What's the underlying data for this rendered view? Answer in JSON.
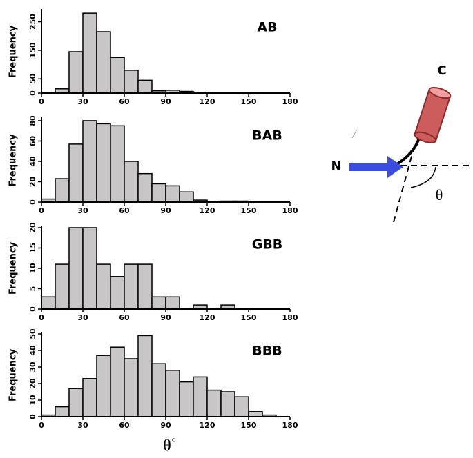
{
  "chart_data": [
    {
      "type": "histogram",
      "title": "AB",
      "ylabel": "Frequency",
      "bins": [
        0,
        10,
        20,
        30,
        40,
        50,
        60,
        70,
        80,
        90,
        100,
        110,
        120,
        130,
        140,
        150,
        160,
        170,
        180
      ],
      "values": [
        2,
        15,
        145,
        280,
        215,
        125,
        80,
        45,
        8,
        10,
        6,
        3,
        0,
        0,
        0,
        0,
        0,
        0
      ],
      "color": "#c8c6c6",
      "xlim": [
        0,
        180
      ],
      "xticks": [
        0,
        30,
        60,
        90,
        120,
        150,
        180
      ],
      "ylim": [
        0,
        290
      ],
      "yticks": [
        0,
        50,
        150,
        250
      ]
    },
    {
      "type": "histogram",
      "title": "BAB",
      "ylabel": "Frequency",
      "bins": [
        0,
        10,
        20,
        30,
        40,
        50,
        60,
        70,
        80,
        90,
        100,
        110,
        120,
        130,
        140,
        150,
        160,
        170,
        180
      ],
      "values": [
        3,
        23,
        57,
        80,
        77,
        75,
        40,
        28,
        18,
        16,
        10,
        2,
        0,
        1,
        1,
        0,
        0,
        0
      ],
      "color": "#c8c6c6",
      "xlim": [
        0,
        180
      ],
      "xticks": [
        0,
        30,
        60,
        90,
        120,
        150,
        180
      ],
      "ylim": [
        0,
        82
      ],
      "yticks": [
        0,
        20,
        40,
        60,
        80
      ]
    },
    {
      "type": "histogram",
      "title": "GBB",
      "ylabel": "Frequency",
      "bins": [
        0,
        10,
        20,
        30,
        40,
        50,
        60,
        70,
        80,
        90,
        100,
        110,
        120,
        130,
        140,
        150,
        160,
        170,
        180
      ],
      "values": [
        3,
        11,
        20,
        20,
        11,
        8,
        11,
        11,
        3,
        3,
        0,
        1,
        0,
        1,
        0,
        0,
        0,
        0
      ],
      "color": "#c8c6c6",
      "xlim": [
        0,
        180
      ],
      "xticks": [
        0,
        30,
        60,
        90,
        120,
        150,
        180
      ],
      "ylim": [
        0,
        20
      ],
      "yticks": [
        0,
        5,
        10,
        15,
        20
      ]
    },
    {
      "type": "histogram",
      "title": "BBB",
      "ylabel": "Frequency",
      "xlabel": "θ˚",
      "bins": [
        0,
        10,
        20,
        30,
        40,
        50,
        60,
        70,
        80,
        90,
        100,
        110,
        120,
        130,
        140,
        150,
        160,
        170,
        180
      ],
      "values": [
        1,
        6,
        17,
        23,
        37,
        42,
        35,
        49,
        32,
        28,
        21,
        24,
        16,
        15,
        12,
        3,
        1,
        0
      ],
      "color": "#c8c6c6",
      "xlim": [
        0,
        180
      ],
      "xticks": [
        0,
        30,
        60,
        90,
        120,
        150,
        180
      ],
      "ylim": [
        0,
        50
      ],
      "yticks": [
        0,
        10,
        20,
        30,
        40,
        50
      ]
    }
  ],
  "diagram": {
    "c_label": "C",
    "n_label": "N",
    "angle_label": "θ"
  }
}
